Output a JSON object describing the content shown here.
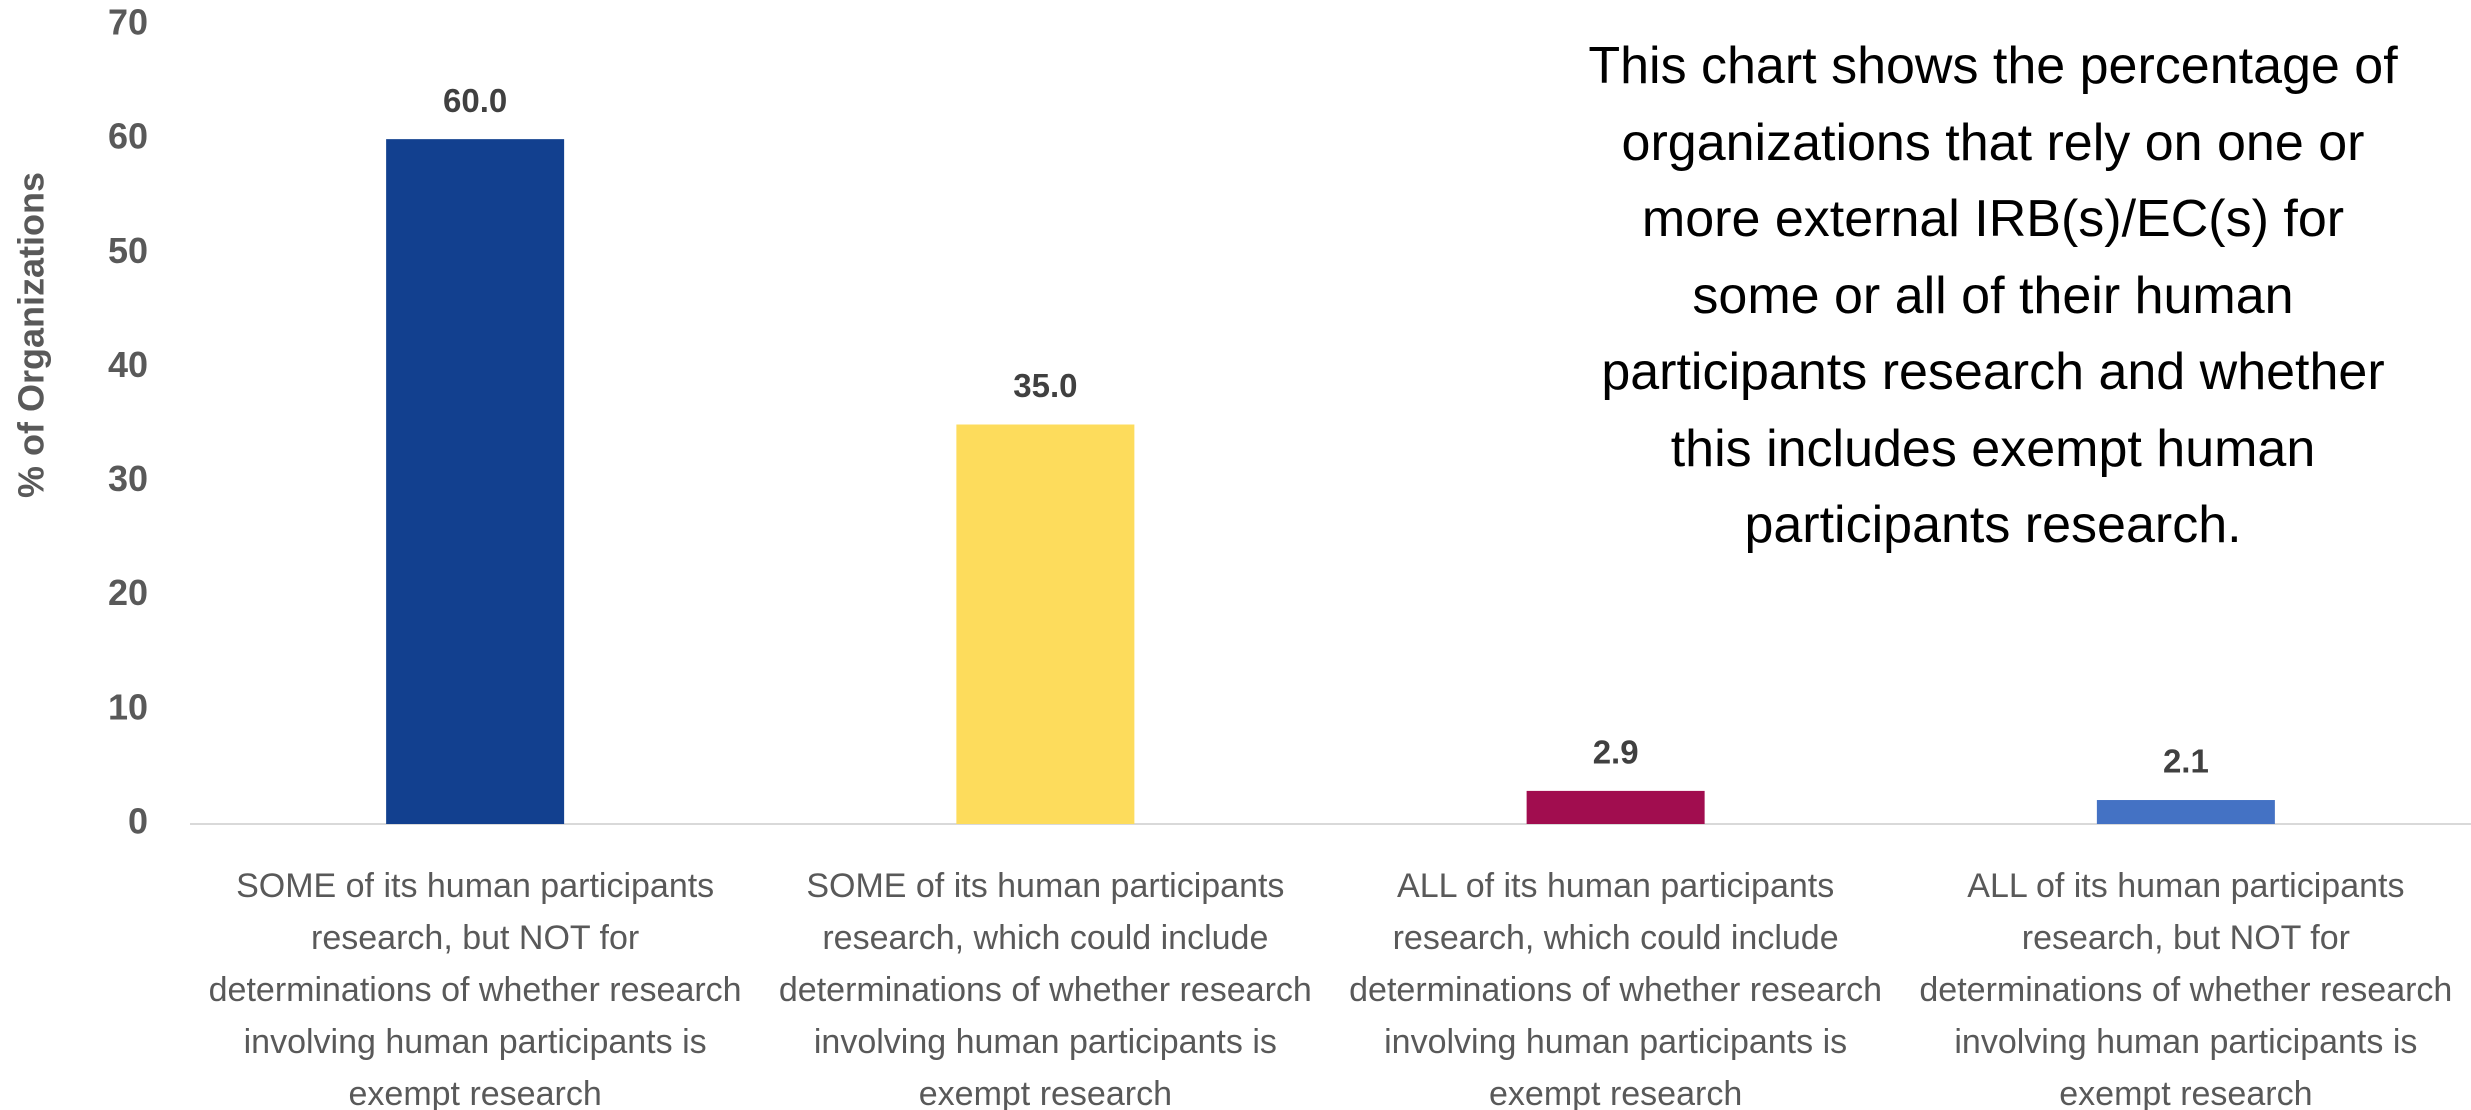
{
  "chart_data": {
    "type": "bar",
    "annotation": "This chart shows the percentage of organizations that rely on one or more external IRB(s)/EC(s) for some or all of their human participants research and whether this includes exempt human participants research.",
    "y_label": "% of Organizations",
    "categories": [
      "SOME of its human participants research, but NOT for determinations of whether research involving human participants is exempt research",
      "SOME of its human participants research, which could include determinations of whether research involving human participants is exempt research",
      "ALL of its human participants research, which could include determinations of whether research involving human participants is exempt research",
      "ALL of its human participants research, but NOT for determinations of whether research involving human participants is exempt research"
    ],
    "values": [
      60,
      35,
      2.9,
      2.1
    ],
    "value_labels": [
      "60.0",
      "35.0",
      "2.9",
      "2.1"
    ],
    "colors": [
      "#12408f",
      "#fddc5c",
      "#a10d4f",
      "#4472c4"
    ],
    "ylim": [
      0,
      70
    ],
    "yticks": [
      0,
      10,
      20,
      30,
      40,
      50,
      60,
      70
    ],
    "grid": false
  }
}
